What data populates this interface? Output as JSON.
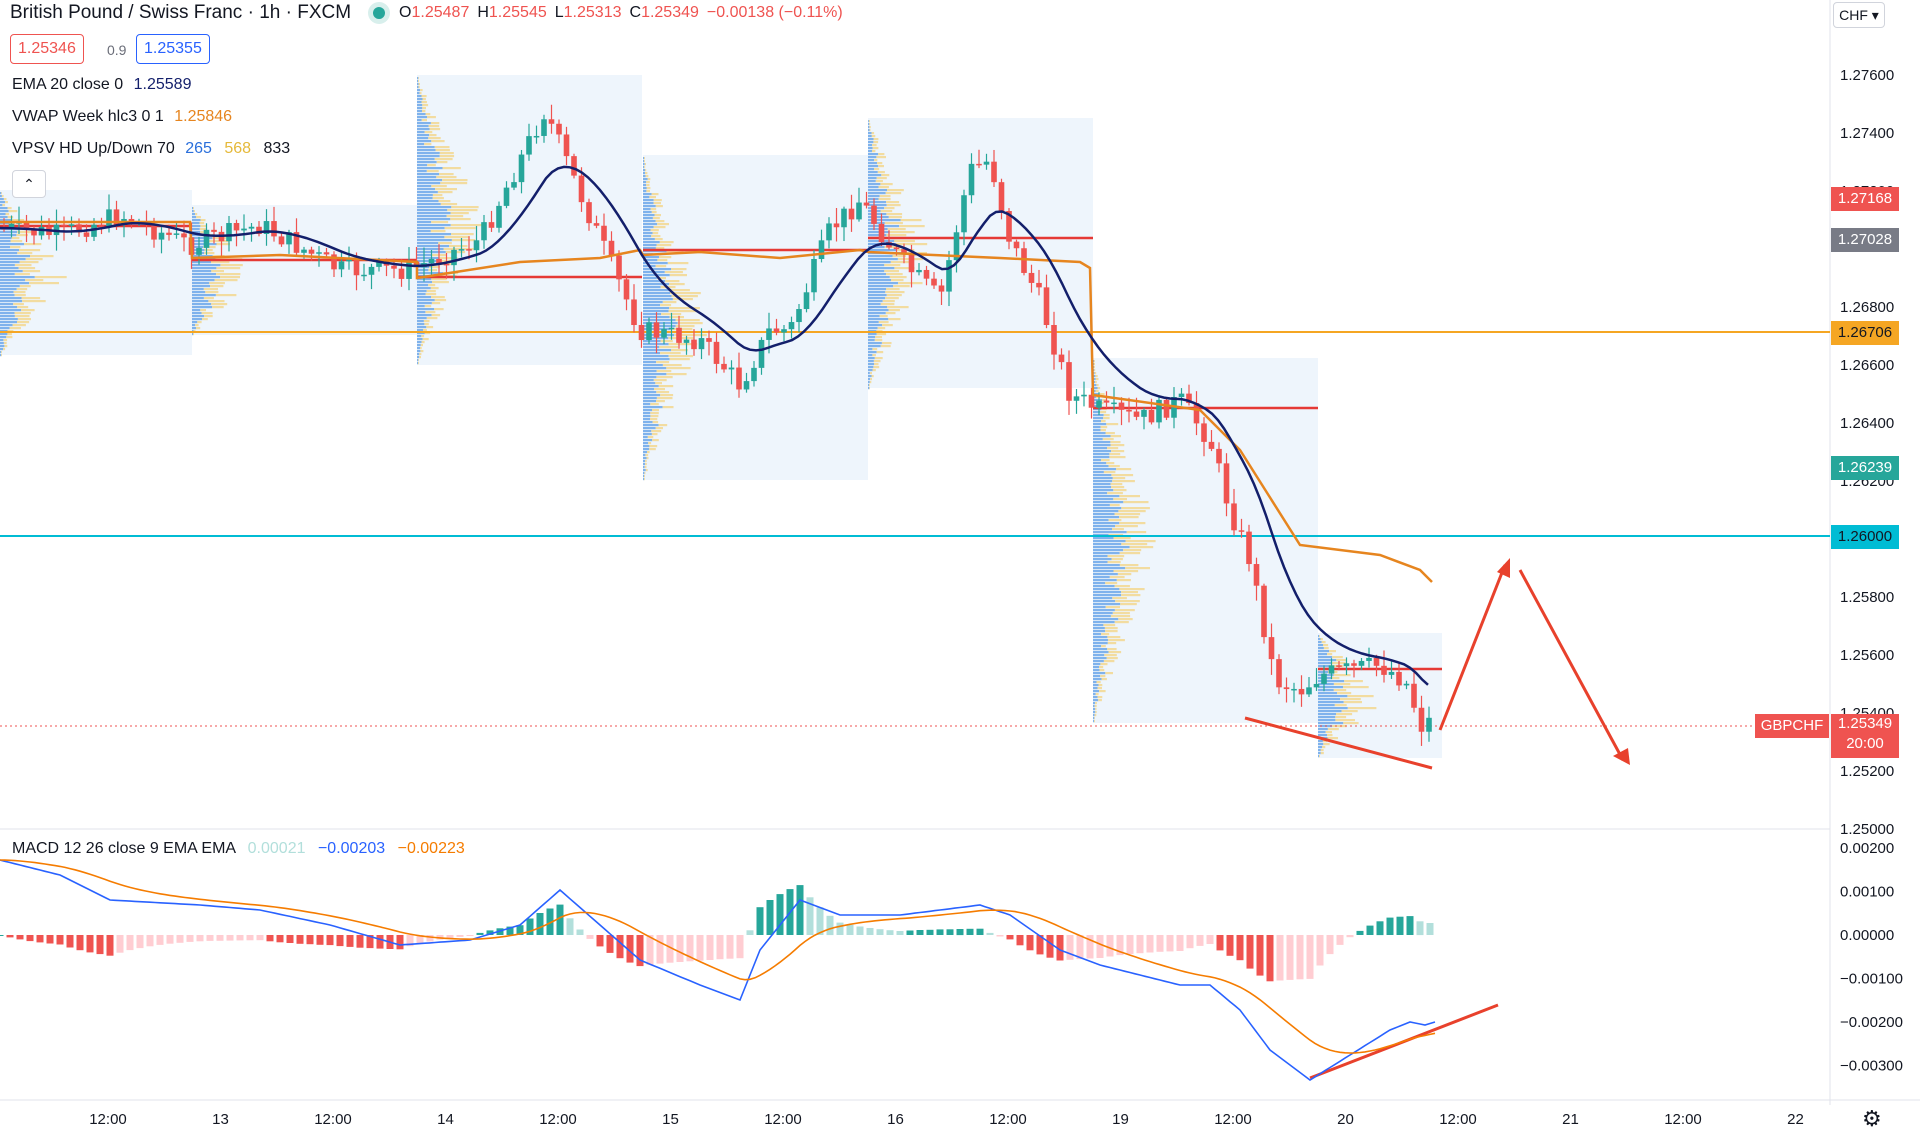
{
  "header": {
    "symbol_title": "British Pound / Swiss Franc · 1h · FXCM",
    "open_label": "O",
    "open": "1.25487",
    "high_label": "H",
    "high": "1.25545",
    "low_label": "L",
    "low": "1.25313",
    "close_label": "C",
    "close": "1.25349",
    "change": "−0.00138 (−0.11%)"
  },
  "quote": {
    "bid": "1.25346",
    "spread": "0.9",
    "ask": "1.25355"
  },
  "indicators": [
    {
      "name": "EMA 20 close 0",
      "values": [
        {
          "text": "1.25589",
          "color": "#131f6b"
        }
      ]
    },
    {
      "name": "VWAP Week hlc3 0 1",
      "values": [
        {
          "text": "1.25846",
          "color": "#e6851f"
        }
      ]
    },
    {
      "name": "VPSV HD Up/Down 70",
      "values": [
        {
          "text": "265",
          "color": "#2a6fdb"
        },
        {
          "text": "568",
          "color": "#e5b93a"
        },
        {
          "text": "833",
          "color": "#131722"
        }
      ]
    }
  ],
  "collapse_glyph": "⌃",
  "currency_button": "CHF ▾",
  "price_axis_ticks": [
    "1.27600",
    "1.27400",
    "1.27200",
    "1.26800",
    "1.26600",
    "1.26400",
    "1.26200",
    "1.25800",
    "1.25600",
    "1.25400",
    "1.25200",
    "1.25000"
  ],
  "price_tags": [
    {
      "text": "1.27168",
      "color": "#ef5350"
    },
    {
      "text": "1.27028",
      "color": "#787b86"
    },
    {
      "text": "1.26706",
      "color": "#f5a623"
    },
    {
      "text": "1.26239",
      "color": "#26a69a"
    },
    {
      "text": "1.26000",
      "color": "#00bcd4"
    },
    {
      "text": "1.25349",
      "color": "#ef5350"
    }
  ],
  "symbol_tag": "GBPCHF",
  "countdown": "20:00",
  "macd": {
    "name": "MACD 12 26 close 9 EMA EMA",
    "hist": "0.00021",
    "macd": "−0.00203",
    "signal": "−0.00223",
    "axis_ticks": [
      "0.00200",
      "0.00100",
      "0.00000",
      "−0.00100",
      "−0.00200",
      "−0.00300"
    ]
  },
  "time_axis": [
    "12:00",
    "13",
    "12:00",
    "14",
    "12:00",
    "15",
    "12:00",
    "16",
    "12:00",
    "19",
    "12:00",
    "20",
    "12:00",
    "21",
    "12:00",
    "22"
  ],
  "colors": {
    "up": "#26a69a",
    "down": "#ef5350",
    "ema": "#131f6b",
    "vwap": "#e6851f",
    "level": "#f5a623",
    "support": "#00bcd4",
    "arrow": "#e8412c"
  },
  "icons": {
    "settings": "gear-icon"
  }
}
